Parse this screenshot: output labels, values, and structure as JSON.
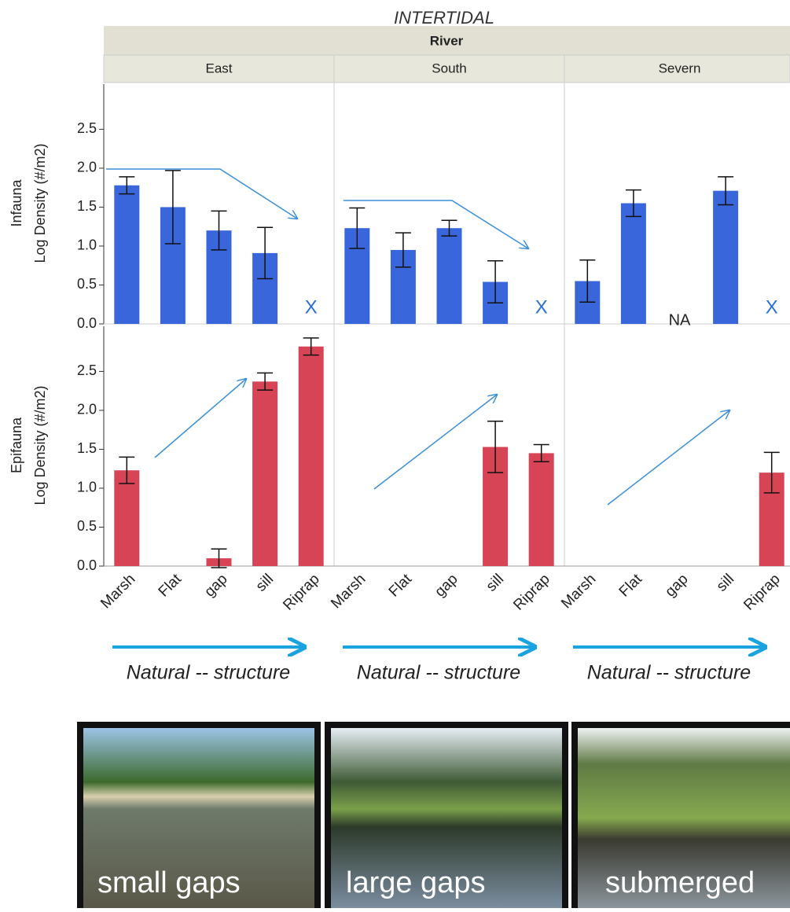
{
  "chart_data": {
    "type": "bar",
    "title": "INTERTIDAL",
    "facet_label": "River",
    "facets": [
      "East",
      "South",
      "Severn"
    ],
    "categories": [
      "Marsh",
      "Flat",
      "gap",
      "sill",
      "Riprap"
    ],
    "ylim": [
      0,
      3.1
    ],
    "yticks": [
      {
        "value": 0,
        "label": "0.0"
      },
      0.5,
      {
        "value": 1,
        "label": "1.0"
      },
      1.5,
      {
        "value": 2,
        "label": "2.0"
      },
      2.5
    ],
    "footer": "Natural -- structure",
    "rows": [
      {
        "name": "Infauna",
        "axis_label": "Log Density (#/m2)",
        "color": "#3a66db",
        "panels": [
          {
            "values": [
              1.78,
              1.5,
              1.2,
              0.91,
              null
            ],
            "errors": [
              0.11,
              0.47,
              0.25,
              0.33,
              null
            ],
            "annotations": [
              {
                "category": "Riprap",
                "text": "X"
              }
            ]
          },
          {
            "values": [
              1.23,
              0.95,
              1.23,
              0.54,
              null
            ],
            "errors": [
              0.26,
              0.22,
              0.1,
              0.27,
              null
            ],
            "annotations": [
              {
                "category": "Riprap",
                "text": "X"
              }
            ]
          },
          {
            "values": [
              0.55,
              1.55,
              null,
              1.71,
              null
            ],
            "errors": [
              0.27,
              0.17,
              null,
              0.18,
              null
            ],
            "annotations": [
              {
                "category": "gap",
                "text": "NA"
              },
              {
                "category": "Riprap",
                "text": "X"
              }
            ]
          }
        ]
      },
      {
        "name": "Epifauna",
        "axis_label": "Log Density (#/m2)",
        "color": "#d64456",
        "panels": [
          {
            "values": [
              1.23,
              null,
              0.1,
              2.37,
              2.82
            ],
            "errors": [
              0.17,
              null,
              0.12,
              0.11,
              0.11
            ]
          },
          {
            "values": [
              null,
              null,
              null,
              1.53,
              1.45
            ],
            "errors": [
              null,
              null,
              null,
              0.33,
              0.11
            ]
          },
          {
            "values": [
              null,
              null,
              null,
              null,
              1.2
            ],
            "errors": [
              null,
              null,
              null,
              null,
              0.26
            ]
          }
        ]
      }
    ]
  },
  "photos": [
    "small gaps",
    "large gaps",
    "submerged"
  ]
}
